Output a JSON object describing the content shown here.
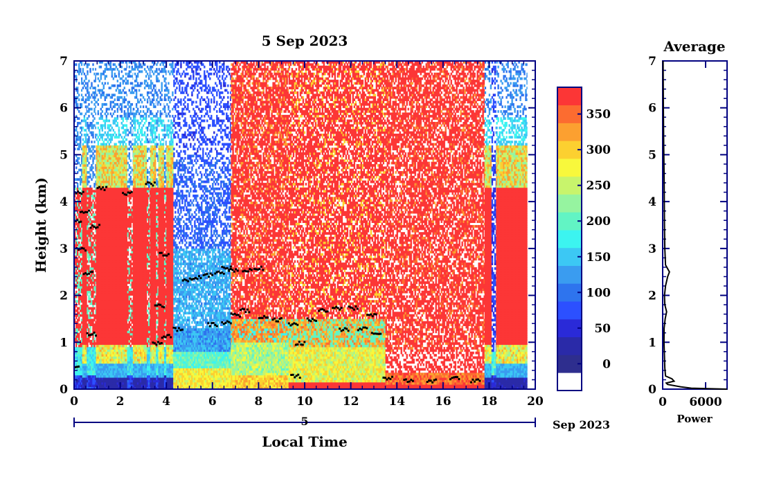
{
  "chart_data": [
    {
      "type": "heatmap",
      "title": "5 Sep 2023",
      "xlabel": "Local Time",
      "ylabel": "Height (km)",
      "xlim": [
        0,
        20
      ],
      "ylim": [
        0,
        7
      ],
      "x_ticks": [
        "0",
        "2",
        "4",
        "6",
        "8",
        "10",
        "12",
        "14",
        "16",
        "18",
        "20"
      ],
      "y_ticks": [
        "0",
        "1",
        "2",
        "3",
        "4",
        "5",
        "6",
        "7"
      ],
      "date_axis": {
        "day": "5",
        "suffix": "Sep 2023"
      },
      "colorbar": {
        "tick_labels": [
          "0",
          "50",
          "100",
          "150",
          "200",
          "250",
          "300",
          "350"
        ],
        "levels": [
          {
            "value": -25,
            "color": "#ffffff"
          },
          {
            "value": 0,
            "color": "#2e2e8e"
          },
          {
            "value": 25,
            "color": "#2a2aa8"
          },
          {
            "value": 50,
            "color": "#2a2ad8"
          },
          {
            "value": 75,
            "color": "#2c50ff"
          },
          {
            "value": 100,
            "color": "#2e74ee"
          },
          {
            "value": 125,
            "color": "#3a9cf0"
          },
          {
            "value": 150,
            "color": "#3cc8f4"
          },
          {
            "value": 175,
            "color": "#3cf4f0"
          },
          {
            "value": 200,
            "color": "#62f4c4"
          },
          {
            "value": 225,
            "color": "#96f4a0"
          },
          {
            "value": 250,
            "color": "#c8f46c"
          },
          {
            "value": 275,
            "color": "#f8f83c"
          },
          {
            "value": 300,
            "color": "#fcd030"
          },
          {
            "value": 325,
            "color": "#fca030"
          },
          {
            "value": 350,
            "color": "#fc6c30"
          },
          {
            "value": 375,
            "color": "#fc3636"
          }
        ]
      },
      "regions": [
        {
          "t0": 0.0,
          "t1": 0.35,
          "profile": "cloudy"
        },
        {
          "t0": 0.35,
          "t1": 0.55,
          "profile": "strong"
        },
        {
          "t0": 0.55,
          "t1": 0.95,
          "profile": "cloudy"
        },
        {
          "t0": 0.95,
          "t1": 1.25,
          "profile": "strong"
        },
        {
          "t0": 1.25,
          "t1": 2.3,
          "profile": "strong"
        },
        {
          "t0": 2.3,
          "t1": 2.55,
          "profile": "cloudy"
        },
        {
          "t0": 2.55,
          "t1": 3.15,
          "profile": "strong"
        },
        {
          "t0": 3.15,
          "t1": 3.3,
          "profile": "cloudy"
        },
        {
          "t0": 3.3,
          "t1": 3.55,
          "profile": "strong"
        },
        {
          "t0": 3.55,
          "t1": 3.65,
          "profile": "cloudy"
        },
        {
          "t0": 3.65,
          "t1": 3.9,
          "profile": "strong"
        },
        {
          "t0": 3.9,
          "t1": 4.0,
          "profile": "cloudy"
        },
        {
          "t0": 4.0,
          "t1": 4.3,
          "profile": "strong"
        },
        {
          "t0": 4.3,
          "t1": 6.8,
          "profile": "blue_day"
        },
        {
          "t0": 6.8,
          "t1": 9.3,
          "profile": "noisy_high"
        },
        {
          "t0": 9.3,
          "t1": 13.5,
          "profile": "noisy_mid"
        },
        {
          "t0": 13.5,
          "t1": 17.8,
          "profile": "noisy_low"
        },
        {
          "t0": 17.8,
          "t1": 18.1,
          "profile": "strong"
        },
        {
          "t0": 18.1,
          "t1": 18.3,
          "profile": "blue_night"
        },
        {
          "t0": 18.3,
          "t1": 19.65,
          "profile": "strong"
        }
      ],
      "cloud_base": [
        {
          "x": 0.0,
          "y": 0.5
        },
        {
          "x": 0.1,
          "y": 3.6
        },
        {
          "x": 0.2,
          "y": 4.2
        },
        {
          "x": 0.3,
          "y": 3.0
        },
        {
          "x": 0.45,
          "y": 3.8
        },
        {
          "x": 0.6,
          "y": 2.5
        },
        {
          "x": 0.75,
          "y": 1.2
        },
        {
          "x": 0.9,
          "y": 3.5
        },
        {
          "x": 1.2,
          "y": 4.3
        },
        {
          "x": 2.3,
          "y": 4.2
        },
        {
          "x": 3.3,
          "y": 4.4
        },
        {
          "x": 3.7,
          "y": 1.8
        },
        {
          "x": 3.9,
          "y": 2.9
        },
        {
          "x": 3.6,
          "y": 1.0
        },
        {
          "x": 4.0,
          "y": 1.15
        },
        {
          "x": 4.5,
          "y": 1.3
        },
        {
          "x": 4.9,
          "y": 2.35
        },
        {
          "x": 5.3,
          "y": 2.4
        },
        {
          "x": 5.8,
          "y": 2.45
        },
        {
          "x": 6.3,
          "y": 2.5
        },
        {
          "x": 6.6,
          "y": 2.6
        },
        {
          "x": 6.9,
          "y": 2.55
        },
        {
          "x": 7.5,
          "y": 2.55
        },
        {
          "x": 8.0,
          "y": 2.6
        },
        {
          "x": 6.0,
          "y": 1.4
        },
        {
          "x": 6.6,
          "y": 1.45
        },
        {
          "x": 7.0,
          "y": 1.6
        },
        {
          "x": 7.4,
          "y": 1.7
        },
        {
          "x": 8.2,
          "y": 1.55
        },
        {
          "x": 8.8,
          "y": 1.5
        },
        {
          "x": 9.5,
          "y": 1.4
        },
        {
          "x": 9.8,
          "y": 1.0
        },
        {
          "x": 10.3,
          "y": 1.5
        },
        {
          "x": 10.8,
          "y": 1.7
        },
        {
          "x": 11.4,
          "y": 1.75
        },
        {
          "x": 11.7,
          "y": 1.3
        },
        {
          "x": 12.1,
          "y": 1.75
        },
        {
          "x": 12.5,
          "y": 1.3
        },
        {
          "x": 12.9,
          "y": 1.6
        },
        {
          "x": 13.1,
          "y": 1.2
        },
        {
          "x": 9.6,
          "y": 0.3
        },
        {
          "x": 13.6,
          "y": 0.25
        },
        {
          "x": 14.5,
          "y": 0.2
        },
        {
          "x": 15.5,
          "y": 0.2
        },
        {
          "x": 16.5,
          "y": 0.25
        },
        {
          "x": 17.4,
          "y": 0.2
        }
      ]
    },
    {
      "type": "line",
      "title": "Average",
      "xlabel": "Power",
      "xlim": [
        0,
        9000
      ],
      "ylim": [
        0,
        7
      ],
      "x_ticks": [
        "0",
        "6000"
      ],
      "y_ticks": [
        "0",
        "1",
        "2",
        "3",
        "4",
        "5",
        "6",
        "7"
      ],
      "points": [
        {
          "x": 9000,
          "y": 0.0
        },
        {
          "x": 4000,
          "y": 0.02
        },
        {
          "x": 2500,
          "y": 0.05
        },
        {
          "x": 700,
          "y": 0.1
        },
        {
          "x": 500,
          "y": 0.13
        },
        {
          "x": 1600,
          "y": 0.17
        },
        {
          "x": 1300,
          "y": 0.22
        },
        {
          "x": 400,
          "y": 0.28
        },
        {
          "x": 300,
          "y": 0.45
        },
        {
          "x": 250,
          "y": 0.7
        },
        {
          "x": 180,
          "y": 1.0
        },
        {
          "x": 200,
          "y": 1.3
        },
        {
          "x": 350,
          "y": 1.5
        },
        {
          "x": 550,
          "y": 1.65
        },
        {
          "x": 300,
          "y": 1.8
        },
        {
          "x": 250,
          "y": 2.0
        },
        {
          "x": 400,
          "y": 2.2
        },
        {
          "x": 700,
          "y": 2.4
        },
        {
          "x": 950,
          "y": 2.5
        },
        {
          "x": 400,
          "y": 2.65
        },
        {
          "x": 300,
          "y": 3.0
        },
        {
          "x": 250,
          "y": 3.5
        },
        {
          "x": 200,
          "y": 4.5
        },
        {
          "x": 150,
          "y": 5.2
        },
        {
          "x": 100,
          "y": 6.0
        },
        {
          "x": 60,
          "y": 7.0
        }
      ]
    }
  ]
}
